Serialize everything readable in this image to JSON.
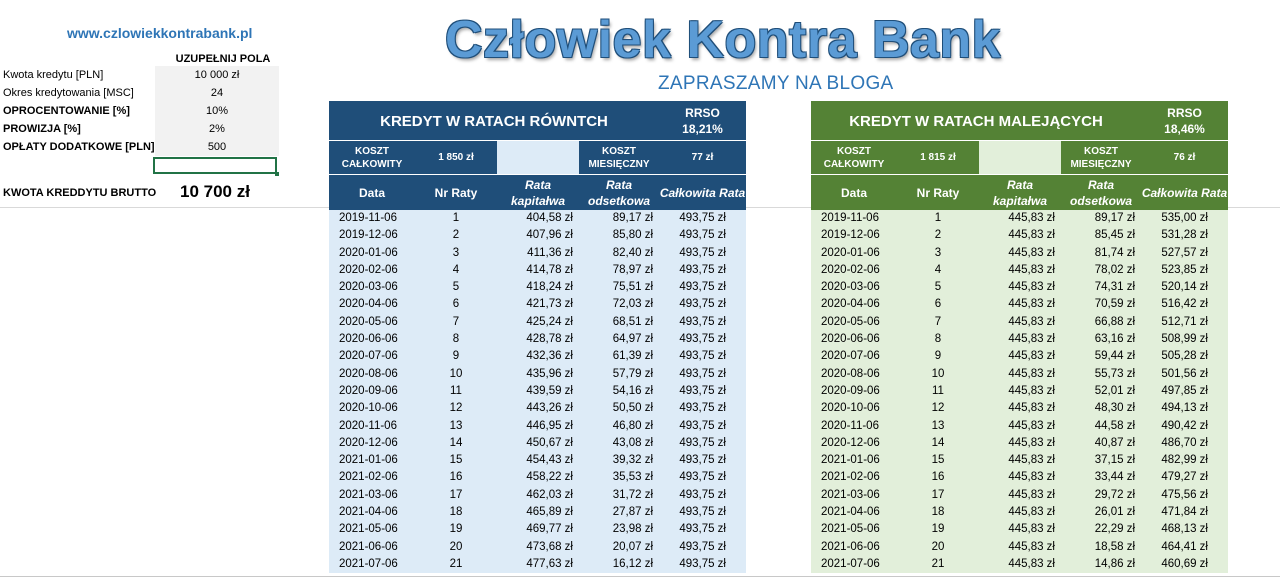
{
  "header": {
    "site": "www.czlowiekkontrabank.pl",
    "title": "Człowiek Kontra Bank",
    "subtitle": "ZAPRASZAMY NA BLOGA"
  },
  "inputs": {
    "fill_label": "UZUPEŁNIJ POLA",
    "rows": [
      {
        "label": "Kwota kredytu [PLN]",
        "value": "10 000 zł"
      },
      {
        "label": "Okres kredytowania [MSC]",
        "value": "24"
      },
      {
        "label": "OPROCENTOWANIE [%]",
        "value": "10%"
      },
      {
        "label": "PROWIZJA [%]",
        "value": "2%"
      },
      {
        "label": "OPŁATY DODATKOWE [PLN]",
        "value": "500"
      }
    ],
    "brutto_label": "KWOTA KREDDYTU BRUTTO",
    "brutto_value": "10 700 zł"
  },
  "equal": {
    "title": "KREDYT W RATACH RÓWNTCH",
    "rrso_label": "RRSO",
    "rrso_value": "18,21%",
    "total_cost_label": "KOSZT CAŁKOWITY",
    "total_cost": "1 850 zł",
    "monthly_cost_label": "KOSZT MIESIĘCZNY",
    "monthly_cost": "77 zł",
    "columns": [
      "Data",
      "Nr Raty",
      "Rata kapitałwa",
      "Rata odsetkowa",
      "Całkowita Rata"
    ],
    "rows": [
      [
        "2019-11-06",
        "1",
        "404,58 zł",
        "89,17 zł",
        "493,75 zł"
      ],
      [
        "2019-12-06",
        "2",
        "407,96 zł",
        "85,80 zł",
        "493,75 zł"
      ],
      [
        "2020-01-06",
        "3",
        "411,36 zł",
        "82,40 zł",
        "493,75 zł"
      ],
      [
        "2020-02-06",
        "4",
        "414,78 zł",
        "78,97 zł",
        "493,75 zł"
      ],
      [
        "2020-03-06",
        "5",
        "418,24 zł",
        "75,51 zł",
        "493,75 zł"
      ],
      [
        "2020-04-06",
        "6",
        "421,73 zł",
        "72,03 zł",
        "493,75 zł"
      ],
      [
        "2020-05-06",
        "7",
        "425,24 zł",
        "68,51 zł",
        "493,75 zł"
      ],
      [
        "2020-06-06",
        "8",
        "428,78 zł",
        "64,97 zł",
        "493,75 zł"
      ],
      [
        "2020-07-06",
        "9",
        "432,36 zł",
        "61,39 zł",
        "493,75 zł"
      ],
      [
        "2020-08-06",
        "10",
        "435,96 zł",
        "57,79 zł",
        "493,75 zł"
      ],
      [
        "2020-09-06",
        "11",
        "439,59 zł",
        "54,16 zł",
        "493,75 zł"
      ],
      [
        "2020-10-06",
        "12",
        "443,26 zł",
        "50,50 zł",
        "493,75 zł"
      ],
      [
        "2020-11-06",
        "13",
        "446,95 zł",
        "46,80 zł",
        "493,75 zł"
      ],
      [
        "2020-12-06",
        "14",
        "450,67 zł",
        "43,08 zł",
        "493,75 zł"
      ],
      [
        "2021-01-06",
        "15",
        "454,43 zł",
        "39,32 zł",
        "493,75 zł"
      ],
      [
        "2021-02-06",
        "16",
        "458,22 zł",
        "35,53 zł",
        "493,75 zł"
      ],
      [
        "2021-03-06",
        "17",
        "462,03 zł",
        "31,72 zł",
        "493,75 zł"
      ],
      [
        "2021-04-06",
        "18",
        "465,89 zł",
        "27,87 zł",
        "493,75 zł"
      ],
      [
        "2021-05-06",
        "19",
        "469,77 zł",
        "23,98 zł",
        "493,75 zł"
      ],
      [
        "2021-06-06",
        "20",
        "473,68 zł",
        "20,07 zł",
        "493,75 zł"
      ],
      [
        "2021-07-06",
        "21",
        "477,63 zł",
        "16,12 zł",
        "493,75 zł"
      ]
    ]
  },
  "decreasing": {
    "title": "KREDYT W RATACH MALEJĄCYCH",
    "rrso_label": "RRSO",
    "rrso_value": "18,46%",
    "total_cost_label": "KOSZT CAŁKOWITY",
    "total_cost": "1 815 zł",
    "monthly_cost_label": "KOSZT MIESIĘCZNY",
    "monthly_cost": "76 zł",
    "columns": [
      "Data",
      "Nr Raty",
      "Rata kapitałwa",
      "Rata odsetkowa",
      "Całkowita Rata"
    ],
    "rows": [
      [
        "2019-11-06",
        "1",
        "445,83 zł",
        "89,17 zł",
        "535,00 zł"
      ],
      [
        "2019-12-06",
        "2",
        "445,83 zł",
        "85,45 zł",
        "531,28 zł"
      ],
      [
        "2020-01-06",
        "3",
        "445,83 zł",
        "81,74 zł",
        "527,57 zł"
      ],
      [
        "2020-02-06",
        "4",
        "445,83 zł",
        "78,02 zł",
        "523,85 zł"
      ],
      [
        "2020-03-06",
        "5",
        "445,83 zł",
        "74,31 zł",
        "520,14 zł"
      ],
      [
        "2020-04-06",
        "6",
        "445,83 zł",
        "70,59 zł",
        "516,42 zł"
      ],
      [
        "2020-05-06",
        "7",
        "445,83 zł",
        "66,88 zł",
        "512,71 zł"
      ],
      [
        "2020-06-06",
        "8",
        "445,83 zł",
        "63,16 zł",
        "508,99 zł"
      ],
      [
        "2020-07-06",
        "9",
        "445,83 zł",
        "59,44 zł",
        "505,28 zł"
      ],
      [
        "2020-08-06",
        "10",
        "445,83 zł",
        "55,73 zł",
        "501,56 zł"
      ],
      [
        "2020-09-06",
        "11",
        "445,83 zł",
        "52,01 zł",
        "497,85 zł"
      ],
      [
        "2020-10-06",
        "12",
        "445,83 zł",
        "48,30 zł",
        "494,13 zł"
      ],
      [
        "2020-11-06",
        "13",
        "445,83 zł",
        "44,58 zł",
        "490,42 zł"
      ],
      [
        "2020-12-06",
        "14",
        "445,83 zł",
        "40,87 zł",
        "486,70 zł"
      ],
      [
        "2021-01-06",
        "15",
        "445,83 zł",
        "37,15 zł",
        "482,99 zł"
      ],
      [
        "2021-02-06",
        "16",
        "445,83 zł",
        "33,44 zł",
        "479,27 zł"
      ],
      [
        "2021-03-06",
        "17",
        "445,83 zł",
        "29,72 zł",
        "475,56 zł"
      ],
      [
        "2021-04-06",
        "18",
        "445,83 zł",
        "26,01 zł",
        "471,84 zł"
      ],
      [
        "2021-05-06",
        "19",
        "445,83 zł",
        "22,29 zł",
        "468,13 zł"
      ],
      [
        "2021-06-06",
        "20",
        "445,83 zł",
        "18,58 zł",
        "464,41 zł"
      ],
      [
        "2021-07-06",
        "21",
        "445,83 zł",
        "14,86 zł",
        "460,69 zł"
      ]
    ]
  }
}
